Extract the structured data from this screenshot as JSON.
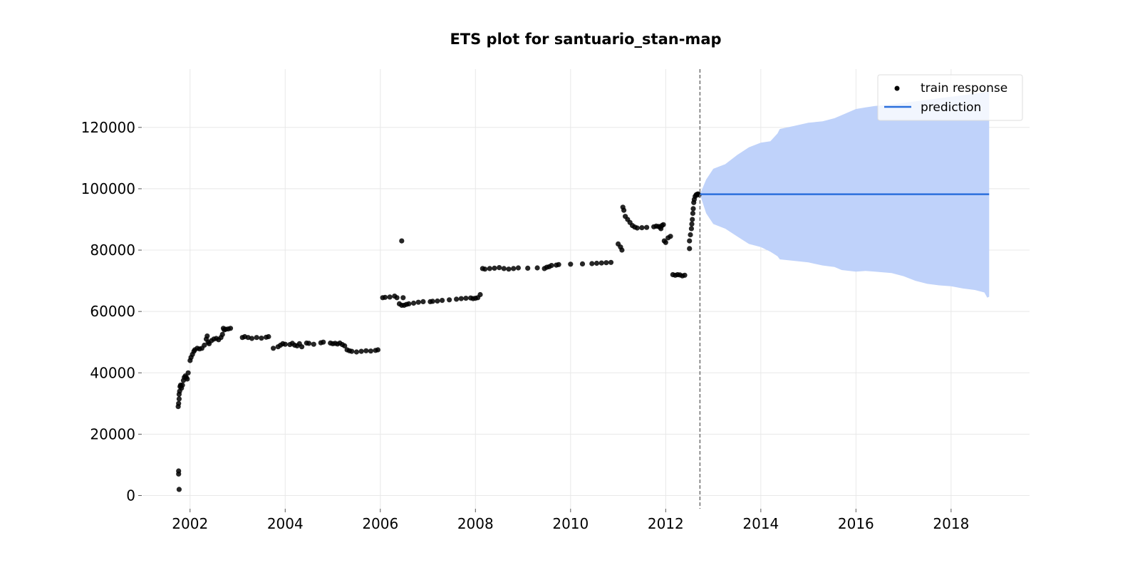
{
  "chart_data": {
    "type": "scatter",
    "title": "ETS plot for santuario_stan-map",
    "xlabel": "",
    "ylabel": "",
    "xlim": [
      2001.0,
      2019.65
    ],
    "ylim": [
      -4300,
      139000
    ],
    "xticks": [
      2002,
      2004,
      2006,
      2008,
      2010,
      2012,
      2014,
      2016,
      2018
    ],
    "xtick_labels": [
      "2002",
      "2004",
      "2006",
      "2008",
      "2010",
      "2012",
      "2014",
      "2016",
      "2018"
    ],
    "yticks": [
      0,
      20000,
      40000,
      60000,
      80000,
      100000,
      120000
    ],
    "ytick_labels": [
      "0",
      "20000",
      "40000",
      "60000",
      "80000",
      "100000",
      "120000"
    ],
    "grid": true,
    "legend_position": "top-right",
    "legend": [
      "train response",
      "prediction"
    ],
    "colors": {
      "train": "#000000",
      "prediction": "#2b6fdc",
      "band": "#bfd2fa",
      "cutoff": "#777777",
      "grid": "#e8e8e8"
    },
    "cutoff_x": 2012.72,
    "series": [
      {
        "name": "train response",
        "kind": "scatter",
        "x": [
          2001.75,
          2001.76,
          2001.77,
          2001.77,
          2001.78,
          2001.79,
          2001.8,
          2001.82,
          2001.84,
          2001.86,
          2001.88,
          2001.9,
          2001.92,
          2001.94,
          2001.96,
          2002.0,
          2002.02,
          2002.05,
          2002.08,
          2002.1,
          2002.15,
          2002.2,
          2002.25,
          2002.3,
          2002.34,
          2002.36,
          2002.38,
          2002.4,
          2002.45,
          2002.5,
          2002.55,
          2002.6,
          2002.65,
          2002.68,
          2002.7,
          2002.72,
          2002.75,
          2002.8,
          2002.85,
          2003.1,
          2003.15,
          2003.22,
          2003.3,
          2003.4,
          2003.5,
          2003.6,
          2003.65,
          2003.75,
          2003.85,
          2003.9,
          2003.95,
          2004.0,
          2004.1,
          2004.15,
          2004.2,
          2004.25,
          2004.3,
          2004.35,
          2004.45,
          2004.5,
          2004.6,
          2004.75,
          2004.8,
          2004.95,
          2005.0,
          2005.05,
          2005.1,
          2005.15,
          2005.2,
          2005.25,
          2005.3,
          2005.35,
          2005.4,
          2005.5,
          2005.6,
          2005.7,
          2005.8,
          2005.9,
          2005.95,
          2006.05,
          2006.1,
          2006.2,
          2006.3,
          2006.35,
          2006.4,
          2006.45,
          2006.48,
          2006.5,
          2006.55,
          2006.6,
          2006.7,
          2006.8,
          2006.9,
          2007.05,
          2007.1,
          2007.2,
          2007.3,
          2007.45,
          2007.6,
          2007.7,
          2007.8,
          2007.9,
          2007.95,
          2008.0,
          2008.05,
          2008.1,
          2008.15,
          2008.2,
          2008.3,
          2008.4,
          2008.5,
          2008.6,
          2008.7,
          2008.8,
          2008.9,
          2009.1,
          2009.3,
          2009.45,
          2009.5,
          2009.55,
          2009.6,
          2009.7,
          2009.75,
          2010.0,
          2010.25,
          2010.45,
          2010.55,
          2010.65,
          2010.75,
          2010.85,
          2011.0,
          2011.05,
          2011.08,
          2011.1,
          2011.12,
          2011.15,
          2011.2,
          2011.25,
          2011.3,
          2011.35,
          2011.4,
          2011.5,
          2011.6,
          2011.75,
          2011.8,
          2011.85,
          2011.88,
          2011.9,
          2011.92,
          2011.95,
          2011.97,
          2012.0,
          2012.05,
          2012.1,
          2012.15,
          2012.2,
          2012.25,
          2012.3,
          2012.35,
          2012.4,
          2012.5,
          2012.5,
          2012.52,
          2012.54,
          2012.55,
          2012.56,
          2012.57,
          2012.58,
          2012.59,
          2012.6,
          2012.62,
          2012.64,
          2012.66,
          2012.68,
          2012.7,
          2001.76,
          2001.76,
          2001.77,
          2006.45
        ],
        "y": [
          29000,
          30000,
          31500,
          33000,
          34000,
          35500,
          36000,
          35000,
          36000,
          37500,
          38500,
          39000,
          38500,
          38000,
          40000,
          44000,
          45000,
          46000,
          47000,
          47500,
          48000,
          47800,
          48000,
          49000,
          51000,
          52000,
          50000,
          49500,
          50500,
          51000,
          51200,
          50800,
          51500,
          52500,
          54500,
          54000,
          54200,
          54300,
          54500,
          51500,
          51800,
          51500,
          51200,
          51500,
          51300,
          51600,
          51800,
          48000,
          48500,
          49000,
          49500,
          49300,
          49200,
          49600,
          49000,
          48800,
          49500,
          48500,
          49700,
          49600,
          49300,
          49800,
          50000,
          49700,
          49500,
          49600,
          49400,
          49700,
          49200,
          48800,
          47500,
          47200,
          47000,
          46800,
          47000,
          47200,
          47100,
          47300,
          47500,
          64500,
          64600,
          64700,
          65000,
          64500,
          62500,
          62000,
          64500,
          62000,
          62300,
          62500,
          62700,
          63000,
          63200,
          63200,
          63300,
          63400,
          63600,
          63800,
          64000,
          64200,
          64300,
          64400,
          64200,
          64300,
          64500,
          65500,
          74000,
          73800,
          74000,
          74100,
          74300,
          74000,
          73800,
          74000,
          74200,
          74100,
          74200,
          74000,
          74400,
          74600,
          75000,
          75100,
          75300,
          75400,
          75500,
          75600,
          75700,
          75800,
          75900,
          76000,
          82000,
          81000,
          80000,
          94000,
          93000,
          91000,
          90000,
          89000,
          88000,
          87500,
          87200,
          87300,
          87400,
          87600,
          87800,
          87700,
          87500,
          87000,
          88000,
          88300,
          83000,
          82500,
          84000,
          84500,
          72000,
          71800,
          72000,
          71900,
          71600,
          71800,
          80500,
          83000,
          85000,
          87000,
          88500,
          90000,
          92000,
          93500,
          95500,
          96500,
          97500,
          98000,
          98200,
          98300,
          98000,
          7000,
          8000,
          2000,
          83000
        ]
      },
      {
        "name": "prediction",
        "kind": "line",
        "x": [
          2012.72,
          2018.8
        ],
        "y": [
          98200,
          98200
        ]
      },
      {
        "name": "prediction interval",
        "kind": "band",
        "x": [
          2012.72,
          2012.85,
          2013.0,
          2013.25,
          2013.5,
          2013.75,
          2014.0,
          2014.2,
          2014.35,
          2014.4,
          2014.7,
          2015.0,
          2015.3,
          2015.55,
          2015.7,
          2016.0,
          2016.2,
          2016.4,
          2016.75,
          2017.0,
          2017.25,
          2017.5,
          2017.75,
          2018.0,
          2018.25,
          2018.5,
          2018.7,
          2018.76,
          2018.8
        ],
        "lower": [
          98200,
          92000,
          88500,
          87000,
          84500,
          82000,
          81000,
          79500,
          78000,
          77000,
          76500,
          76000,
          75000,
          74500,
          73500,
          73000,
          73200,
          73000,
          72500,
          71500,
          70000,
          69000,
          68500,
          68200,
          67500,
          67000,
          66200,
          64500,
          64800
        ],
        "upper": [
          98200,
          103000,
          106500,
          108000,
          111000,
          113500,
          115000,
          115500,
          118000,
          119500,
          120500,
          121500,
          122000,
          123000,
          124000,
          126000,
          126500,
          127000,
          127500,
          128000,
          128500,
          129000,
          129500,
          130000,
          130500,
          131000,
          131500,
          131800,
          132000
        ]
      }
    ]
  }
}
